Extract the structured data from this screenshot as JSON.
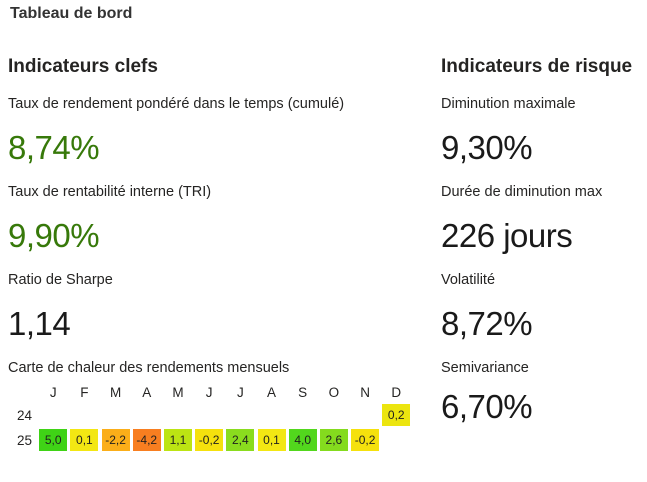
{
  "page": {
    "title": "Tableau de bord"
  },
  "colors": {
    "positive_value_green": "#37790A",
    "value_black": "#1a1a1a",
    "text": "#252423"
  },
  "left": {
    "header": "Indicateurs clefs",
    "kpis": [
      {
        "label": "Taux de rendement pondéré dans le temps (cumulé)",
        "value": "8,74%"
      },
      {
        "label": "Taux de rentabilité interne (TRI)",
        "value": "9,90%"
      },
      {
        "label": "Ratio de Sharpe",
        "value": "1,14"
      }
    ],
    "heatmap": {
      "title": "Carte de chaleur des rendements mensuels",
      "columns": [
        "J",
        "F",
        "M",
        "A",
        "M",
        "J",
        "J",
        "A",
        "S",
        "O",
        "N",
        "D"
      ],
      "rows": [
        {
          "label": "24",
          "cells": [
            null,
            null,
            null,
            null,
            null,
            null,
            null,
            null,
            null,
            null,
            null,
            {
              "text": "0,2",
              "bg": "#ECE50F"
            }
          ]
        },
        {
          "label": "25",
          "cells": [
            {
              "text": "5,0",
              "bg": "#3FD316"
            },
            {
              "text": "0,1",
              "bg": "#F3E713"
            },
            {
              "text": "-2,2",
              "bg": "#FBAE19"
            },
            {
              "text": "-4,2",
              "bg": "#F87E20"
            },
            {
              "text": "1,1",
              "bg": "#BCE413"
            },
            {
              "text": "-0,2",
              "bg": "#F5E10D"
            },
            {
              "text": "2,4",
              "bg": "#8ADC1E"
            },
            {
              "text": "0,1",
              "bg": "#F3E713"
            },
            {
              "text": "4,0",
              "bg": "#52D71D"
            },
            {
              "text": "2,6",
              "bg": "#84DB1E"
            },
            {
              "text": "-0,2",
              "bg": "#F5E10D"
            },
            null
          ]
        }
      ]
    }
  },
  "right": {
    "header": "Indicateurs de risque",
    "kpis": [
      {
        "label": "Diminution maximale",
        "value": "9,30%"
      },
      {
        "label": "Durée de diminution max",
        "value": "226 jours"
      },
      {
        "label": "Volatilité",
        "value": "8,72%"
      },
      {
        "label": "Semivariance",
        "value": "6,70%"
      }
    ]
  },
  "chart_data": [
    {
      "type": "table",
      "title": "Indicateurs clefs",
      "rows": [
        {
          "label": "Taux de rendement pondéré dans le temps (cumulé)",
          "value": 8.74,
          "unit": "%"
        },
        {
          "label": "Taux de rentabilité interne (TRI)",
          "value": 9.9,
          "unit": "%"
        },
        {
          "label": "Ratio de Sharpe",
          "value": 1.14,
          "unit": ""
        }
      ]
    },
    {
      "type": "table",
      "title": "Indicateurs de risque",
      "rows": [
        {
          "label": "Diminution maximale",
          "value": 9.3,
          "unit": "%"
        },
        {
          "label": "Durée de diminution max",
          "value": 226,
          "unit": "jours"
        },
        {
          "label": "Volatilité",
          "value": 8.72,
          "unit": "%"
        },
        {
          "label": "Semivariance",
          "value": 6.7,
          "unit": "%"
        }
      ]
    },
    {
      "type": "heatmap",
      "title": "Carte de chaleur des rendements mensuels",
      "x": [
        "J",
        "F",
        "M",
        "A",
        "M",
        "J",
        "J",
        "A",
        "S",
        "O",
        "N",
        "D"
      ],
      "y": [
        "24",
        "25"
      ],
      "values": [
        [
          null,
          null,
          null,
          null,
          null,
          null,
          null,
          null,
          null,
          null,
          null,
          0.2
        ],
        [
          5.0,
          0.1,
          -2.2,
          -4.2,
          1.1,
          -0.2,
          2.4,
          0.1,
          4.0,
          2.6,
          -0.2,
          null
        ]
      ],
      "colorscale": "red-yellow-green (low=orange #F87E20, mid=yellow #F3E713, high=green #3FD316)",
      "legend": "off",
      "grid": "off"
    }
  ]
}
